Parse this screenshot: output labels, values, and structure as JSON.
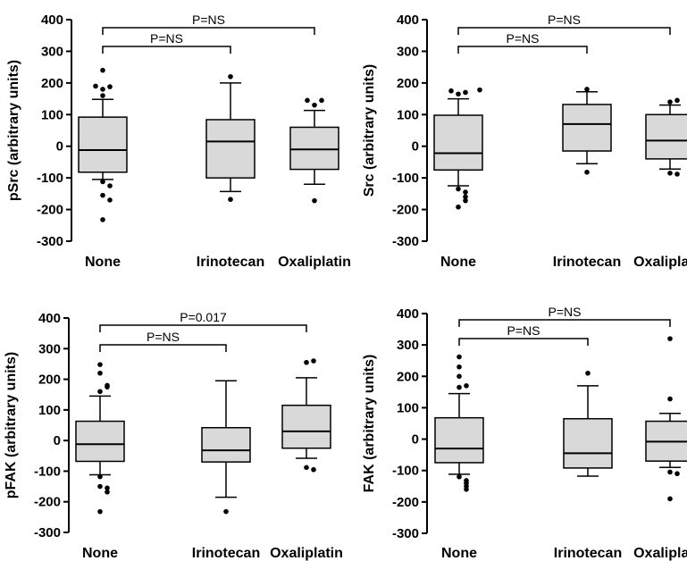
{
  "chart_data": [
    {
      "type": "box",
      "ylabel": "pSrc (arbitrary units)",
      "ylim": [
        -300,
        400
      ],
      "yticks": [
        "-300",
        "-200",
        "-100",
        "0",
        "100",
        "200",
        "300",
        "400"
      ],
      "categories": [
        "None",
        "Irinotecan",
        "Oxaliplatin"
      ],
      "boxes": [
        {
          "min": -105,
          "q1": -82,
          "median": -12,
          "q3": 92,
          "max": 148,
          "outliers": [
            160,
            180,
            188,
            190,
            240,
            -112,
            -125,
            -155,
            -170,
            -232
          ]
        },
        {
          "min": -143,
          "q1": -100,
          "median": 15,
          "q3": 84,
          "max": 200,
          "outliers": [
            220,
            -168
          ]
        },
        {
          "min": -120,
          "q1": -73,
          "median": -10,
          "q3": 60,
          "max": 113,
          "outliers": [
            130,
            145,
            145,
            -172
          ]
        }
      ],
      "comparisons": [
        {
          "from": "None",
          "to": "Oxaliplatin",
          "label": "P=NS"
        },
        {
          "from": "None",
          "to": "Irinotecan",
          "label": "P=NS"
        }
      ]
    },
    {
      "type": "box",
      "ylabel": "Src (arbitrary units)",
      "ylim": [
        -300,
        400
      ],
      "yticks": [
        "-300",
        "-200",
        "-100",
        "0",
        "100",
        "200",
        "300",
        "400"
      ],
      "categories": [
        "None",
        "Irinotecan",
        "Oxaliplatin"
      ],
      "boxes": [
        {
          "min": -125,
          "q1": -75,
          "median": -22,
          "q3": 98,
          "max": 150,
          "outliers": [
            165,
            170,
            175,
            178,
            -135,
            -145,
            -160,
            -172,
            -192
          ]
        },
        {
          "min": -55,
          "q1": -15,
          "median": 70,
          "q3": 132,
          "max": 172,
          "outliers": [
            180,
            -82
          ]
        },
        {
          "min": -72,
          "q1": -40,
          "median": 18,
          "q3": 100,
          "max": 130,
          "outliers": [
            140,
            145,
            -85,
            -88
          ]
        }
      ],
      "comparisons": [
        {
          "from": "None",
          "to": "Oxaliplatin",
          "label": "P=NS"
        },
        {
          "from": "None",
          "to": "Irinotecan",
          "label": "P=NS"
        }
      ]
    },
    {
      "type": "box",
      "ylabel": "pFAK (arbitrary units)",
      "ylim": [
        -300,
        400
      ],
      "yticks": [
        "-300",
        "-200",
        "-100",
        "0",
        "100",
        "200",
        "300",
        "400"
      ],
      "categories": [
        "None",
        "Irinotecan",
        "Oxaliplatin"
      ],
      "boxes": [
        {
          "min": -112,
          "q1": -68,
          "median": -12,
          "q3": 63,
          "max": 145,
          "outliers": [
            160,
            175,
            180,
            220,
            248,
            -118,
            -150,
            -155,
            -168,
            -232
          ]
        },
        {
          "min": -185,
          "q1": -70,
          "median": -32,
          "q3": 42,
          "max": 195,
          "outliers": [
            -232
          ]
        },
        {
          "min": -58,
          "q1": -25,
          "median": 30,
          "q3": 115,
          "max": 205,
          "outliers": [
            255,
            260,
            -88,
            -95
          ]
        }
      ],
      "comparisons": [
        {
          "from": "None",
          "to": "Oxaliplatin",
          "label": "P=0.017"
        },
        {
          "from": "None",
          "to": "Irinotecan",
          "label": "P=NS"
        }
      ]
    },
    {
      "type": "box",
      "ylabel": "FAK (arbitrary units)",
      "ylim": [
        -300,
        400
      ],
      "yticks": [
        "-300",
        "-200",
        "-100",
        "0",
        "100",
        "200",
        "300",
        "400"
      ],
      "categories": [
        "None",
        "Irinotecan",
        "Oxaliplatin"
      ],
      "boxes": [
        {
          "min": -112,
          "q1": -75,
          "median": -30,
          "q3": 68,
          "max": 145,
          "outliers": [
            165,
            170,
            200,
            230,
            262,
            -120,
            -132,
            -140,
            -150,
            -160
          ]
        },
        {
          "min": -118,
          "q1": -92,
          "median": -45,
          "q3": 65,
          "max": 170,
          "outliers": [
            210
          ]
        },
        {
          "min": -90,
          "q1": -70,
          "median": -8,
          "q3": 57,
          "max": 82,
          "outliers": [
            128,
            320,
            -105,
            -110,
            -190
          ]
        }
      ],
      "comparisons": [
        {
          "from": "None",
          "to": "Oxaliplatin",
          "label": "P=NS"
        },
        {
          "from": "None",
          "to": "Irinotecan",
          "label": "P=NS"
        }
      ]
    }
  ]
}
